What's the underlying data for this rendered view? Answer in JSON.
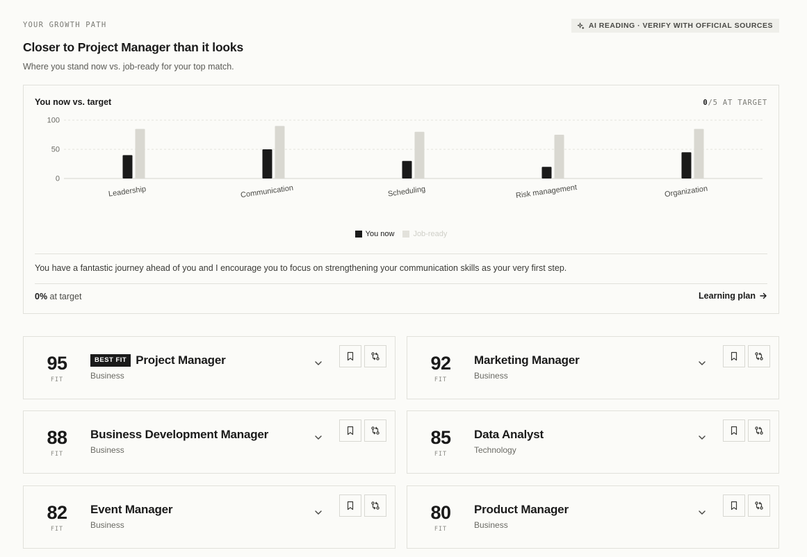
{
  "header": {
    "eyebrow": "YOUR GROWTH PATH",
    "ai_badge": "AI READING · VERIFY WITH OFFICIAL SOURCES",
    "title": "Closer to Project Manager than it looks",
    "subtitle": "Where you stand now vs. job-ready for your top match."
  },
  "chart_card": {
    "title": "You now vs. target",
    "count_value": "0",
    "count_rest": "/5 AT TARGET",
    "advice": "You have a fantastic journey ahead of you and I encourage you to focus on strengthening your communication skills as your very first step.",
    "pct_value": "0%",
    "pct_label": " at target",
    "plan_link": "Learning plan"
  },
  "chart_data": {
    "type": "bar",
    "categories": [
      "Leadership",
      "Communication",
      "Scheduling",
      "Risk management",
      "Organization"
    ],
    "series": [
      {
        "name": "You now",
        "values": [
          40,
          50,
          30,
          20,
          45
        ],
        "color": "#1a1a1a"
      },
      {
        "name": "Job-ready",
        "values": [
          85,
          90,
          80,
          75,
          85
        ],
        "color": "#d9d8d1"
      }
    ],
    "yticks": [
      "100",
      "50",
      "0"
    ],
    "ylim": [
      0,
      100
    ],
    "grid": true,
    "legend": "bottom-center"
  },
  "jobs": [
    {
      "score": "95",
      "fit": "FIT",
      "badge": "BEST FIT",
      "title": "Project Manager",
      "category": "Business"
    },
    {
      "score": "92",
      "fit": "FIT",
      "title": "Marketing Manager",
      "category": "Business"
    },
    {
      "score": "88",
      "fit": "FIT",
      "title": "Business Development Manager",
      "category": "Business"
    },
    {
      "score": "85",
      "fit": "FIT",
      "title": "Data Analyst",
      "category": "Technology"
    },
    {
      "score": "82",
      "fit": "FIT",
      "title": "Event Manager",
      "category": "Business"
    },
    {
      "score": "80",
      "fit": "FIT",
      "title": "Product Manager",
      "category": "Business"
    }
  ],
  "icons": {
    "ai": "sparkle-icon",
    "plan": "arrow-right-icon",
    "expand": "chevron-down-icon",
    "save": "bookmark-icon",
    "compare": "compare-icon"
  }
}
